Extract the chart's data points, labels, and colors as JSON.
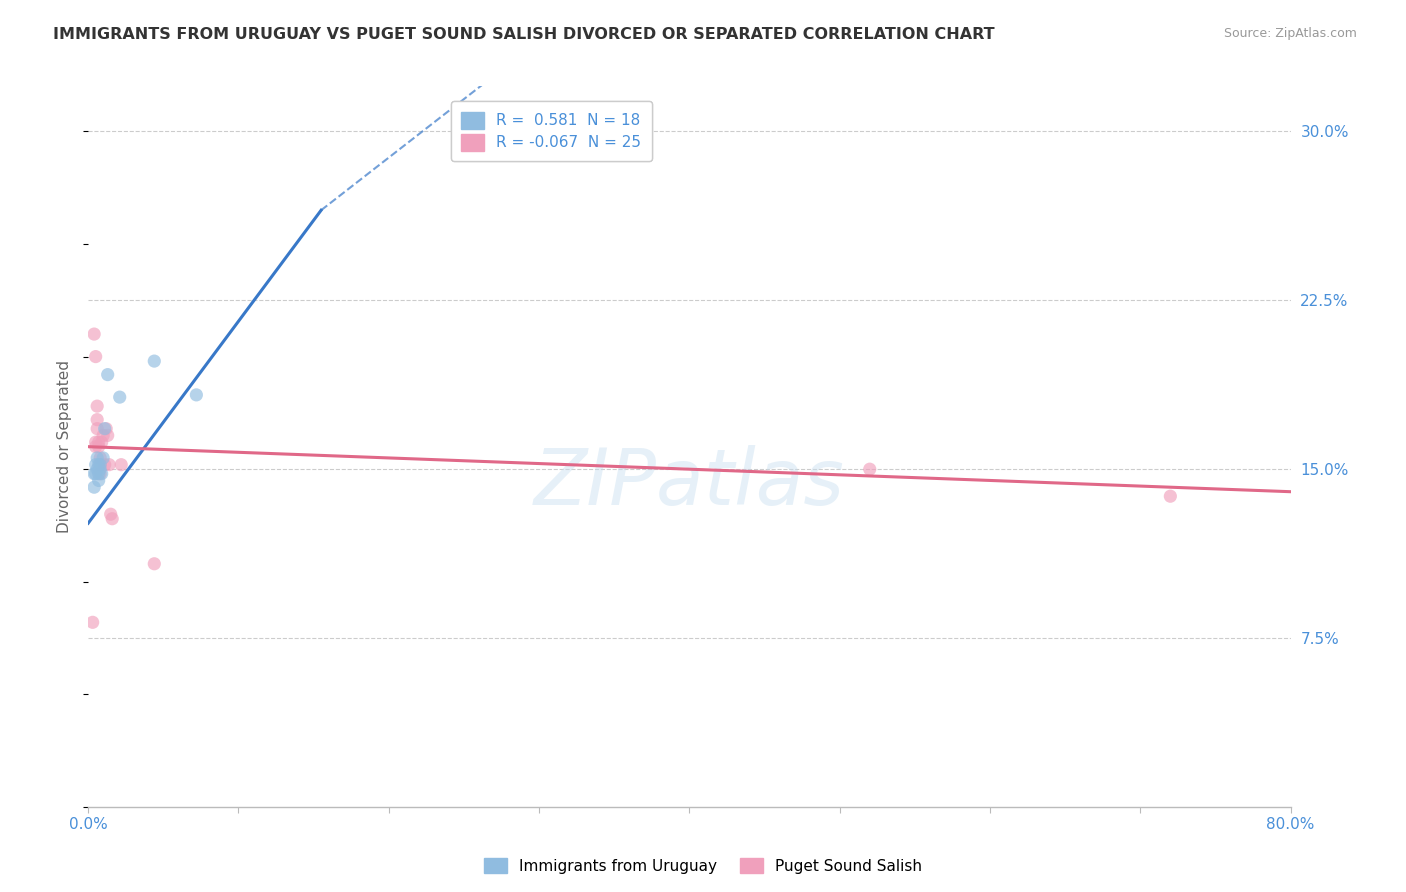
{
  "title": "IMMIGRANTS FROM URUGUAY VS PUGET SOUND SALISH DIVORCED OR SEPARATED CORRELATION CHART",
  "source": "Source: ZipAtlas.com",
  "ylabel": "Divorced or Separated",
  "legend_entries": [
    {
      "label": "R =  0.581  N = 18",
      "color": "#a8c8e8"
    },
    {
      "label": "R = -0.067  N = 25",
      "color": "#f4a8bc"
    }
  ],
  "legend_labels_bottom": [
    "Immigrants from Uruguay",
    "Puget Sound Salish"
  ],
  "watermark": "ZIPatlas",
  "blue_scatter": [
    [
      0.004,
      0.148
    ],
    [
      0.004,
      0.142
    ],
    [
      0.005,
      0.152
    ],
    [
      0.005,
      0.148
    ],
    [
      0.006,
      0.155
    ],
    [
      0.006,
      0.15
    ],
    [
      0.007,
      0.152
    ],
    [
      0.007,
      0.148
    ],
    [
      0.007,
      0.145
    ],
    [
      0.008,
      0.15
    ],
    [
      0.008,
      0.152
    ],
    [
      0.009,
      0.148
    ],
    [
      0.01,
      0.155
    ],
    [
      0.011,
      0.168
    ],
    [
      0.013,
      0.192
    ],
    [
      0.021,
      0.182
    ],
    [
      0.044,
      0.198
    ],
    [
      0.072,
      0.183
    ]
  ],
  "pink_scatter": [
    [
      0.003,
      0.082
    ],
    [
      0.004,
      0.21
    ],
    [
      0.005,
      0.2
    ],
    [
      0.005,
      0.16
    ],
    [
      0.005,
      0.162
    ],
    [
      0.006,
      0.178
    ],
    [
      0.006,
      0.168
    ],
    [
      0.006,
      0.172
    ],
    [
      0.007,
      0.16
    ],
    [
      0.007,
      0.162
    ],
    [
      0.008,
      0.155
    ],
    [
      0.008,
      0.148
    ],
    [
      0.008,
      0.152
    ],
    [
      0.009,
      0.162
    ],
    [
      0.01,
      0.165
    ],
    [
      0.011,
      0.152
    ],
    [
      0.012,
      0.168
    ],
    [
      0.013,
      0.165
    ],
    [
      0.014,
      0.152
    ],
    [
      0.015,
      0.13
    ],
    [
      0.016,
      0.128
    ],
    [
      0.022,
      0.152
    ],
    [
      0.044,
      0.108
    ],
    [
      0.52,
      0.15
    ],
    [
      0.72,
      0.138
    ]
  ],
  "blue_line_solid": {
    "x": [
      0.0,
      0.155
    ],
    "y": [
      0.126,
      0.265
    ]
  },
  "blue_line_dashed": {
    "x": [
      0.155,
      0.8
    ],
    "y": [
      0.265,
      0.6
    ]
  },
  "pink_line": {
    "x": [
      0.0,
      0.8
    ],
    "y": [
      0.16,
      0.14
    ]
  },
  "xlim": [
    0.0,
    0.8
  ],
  "ylim": [
    0.0,
    0.32
  ],
  "y_ticks": [
    0.075,
    0.15,
    0.225,
    0.3
  ],
  "x_ticks": [
    0.0,
    0.1,
    0.2,
    0.3,
    0.4,
    0.5,
    0.6,
    0.7,
    0.8
  ],
  "background_color": "#ffffff",
  "grid_color": "#cccccc",
  "scatter_size": 90,
  "blue_color": "#90bce0",
  "pink_color": "#f0a0bc",
  "blue_line_color": "#3878c8",
  "pink_line_color": "#e06888"
}
